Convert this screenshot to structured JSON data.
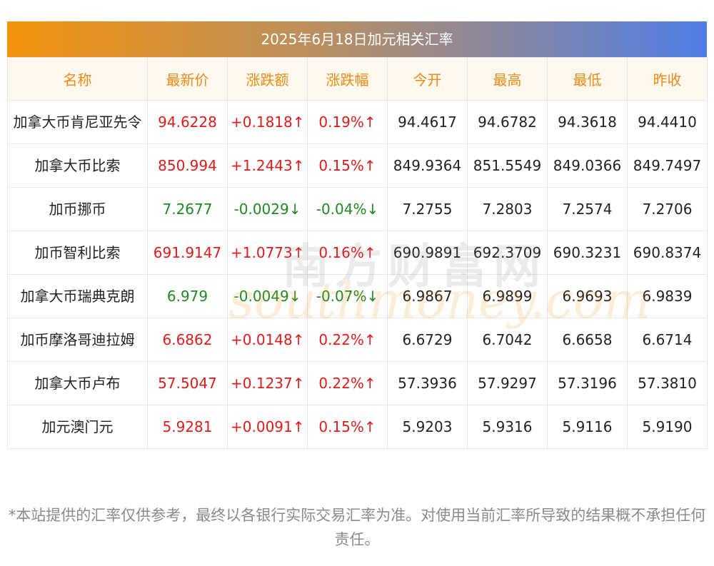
{
  "title": "2025年6月18日加元相关汇率",
  "headers": [
    "名称",
    "最新价",
    "涨跌额",
    "涨跌幅",
    "今开",
    "最高",
    "最低",
    "昨收"
  ],
  "rows": [
    {
      "name": "加拿大币肯尼亚先令",
      "latest": "94.6228",
      "change": "+0.1818↑",
      "pct": "0.19%↑",
      "open": "94.4617",
      "high": "94.6782",
      "low": "94.3618",
      "prev": "94.4410",
      "dir": "up"
    },
    {
      "name": "加拿大币比索",
      "latest": "850.994",
      "change": "+1.2443↑",
      "pct": "0.15%↑",
      "open": "849.9364",
      "high": "851.5549",
      "low": "849.0366",
      "prev": "849.7497",
      "dir": "up"
    },
    {
      "name": "加币挪币",
      "latest": "7.2677",
      "change": "-0.0029↓",
      "pct": "-0.04%↓",
      "open": "7.2755",
      "high": "7.2803",
      "low": "7.2574",
      "prev": "7.2706",
      "dir": "down"
    },
    {
      "name": "加币智利比索",
      "latest": "691.9147",
      "change": "+1.0773↑",
      "pct": "0.16%↑",
      "open": "690.9891",
      "high": "692.3709",
      "low": "690.3231",
      "prev": "690.8374",
      "dir": "up"
    },
    {
      "name": "加拿大币瑞典克朗",
      "latest": "6.979",
      "change": "-0.0049↓",
      "pct": "-0.07%↓",
      "open": "6.9867",
      "high": "6.9899",
      "low": "6.9693",
      "prev": "6.9839",
      "dir": "down"
    },
    {
      "name": "加币摩洛哥迪拉姆",
      "latest": "6.6862",
      "change": "+0.0148↑",
      "pct": "0.22%↑",
      "open": "6.6729",
      "high": "6.7042",
      "low": "6.6658",
      "prev": "6.6714",
      "dir": "up"
    },
    {
      "name": "加拿大币卢布",
      "latest": "57.5047",
      "change": "+0.1237↑",
      "pct": "0.22%↑",
      "open": "57.3936",
      "high": "57.9297",
      "low": "57.3196",
      "prev": "57.3810",
      "dir": "up"
    },
    {
      "name": "加元澳门元",
      "latest": "5.9281",
      "change": "+0.0091↑",
      "pct": "0.15%↑",
      "open": "5.9203",
      "high": "5.9316",
      "low": "5.9116",
      "prev": "5.9190",
      "dir": "up"
    }
  ],
  "watermark": {
    "cn": "南方财富网",
    "en": "southmoney.com"
  },
  "disclaimer": "*本站提供的汇率仅供参考，最终以各银行实际交易汇率为准。对使用当前汇率所导致的结果概不承担任何责任。",
  "colors": {
    "up": "#e21a1a",
    "down": "#1f8a1f",
    "header_text": "#f08a14",
    "header_bg": "#fff8ef"
  }
}
